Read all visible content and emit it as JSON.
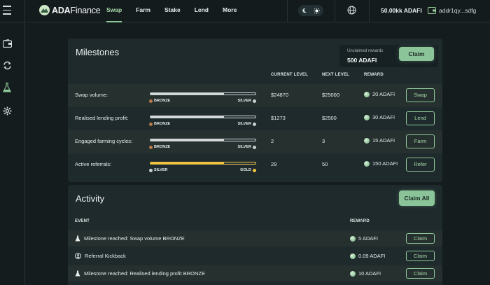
{
  "app": {
    "logo_strong": "ADA",
    "logo_light": "Finance"
  },
  "nav": {
    "items": [
      {
        "label": "Swap",
        "active": true
      },
      {
        "label": "Farm",
        "active": false
      },
      {
        "label": "Stake",
        "active": false
      },
      {
        "label": "Lend",
        "active": false
      },
      {
        "label": "More",
        "active": false
      }
    ]
  },
  "header": {
    "balance": "50.00kk ADAFI",
    "address": "addr1qy...sdfg",
    "icons": [
      "moon-icon",
      "sun-icon",
      "globe-icon",
      "wallet-icon"
    ]
  },
  "sidebar": {
    "icons": [
      "wallet-icon",
      "swap-icon",
      "flask-icon",
      "gear-icon"
    ]
  },
  "milestones": {
    "title": "Milestones",
    "unclaimed_label": "Unclaimed rewards",
    "unclaimed_value": "500 ADAFI",
    "claim_label": "Claim",
    "columns": {
      "current": "CURRENT LEVEL",
      "next": "NEXT LEVEL",
      "reward": "REWARD"
    },
    "rows": [
      {
        "label": "Swap volume:",
        "from": "BRONZE",
        "to": "SILVER",
        "progress": 0.7,
        "bar": "silver",
        "current": "$24870",
        "next": "$25000",
        "reward": "20 ADAFI",
        "action": "Swap"
      },
      {
        "label": "Realised lending profit:",
        "from": "BRONZE",
        "to": "SILVER",
        "progress": 0.7,
        "bar": "silver",
        "current": "$1273",
        "next": "$2500",
        "reward": "30 ADAFI",
        "action": "Lend"
      },
      {
        "label": "Engaged farming cycles:",
        "from": "BRONZE",
        "to": "SILVER",
        "progress": 0.7,
        "bar": "silver",
        "current": "2",
        "next": "3",
        "reward": "15 ADAFI",
        "action": "Farm"
      },
      {
        "label": "Active referrals:",
        "from": "SILVER",
        "to": "GOLD",
        "progress": 0.7,
        "bar": "gold",
        "current": "29",
        "next": "50",
        "reward": "150 ADAFI",
        "action": "Refer"
      }
    ]
  },
  "activity": {
    "title": "Activity",
    "claim_all_label": "Claim All",
    "columns": {
      "event": "EVENT",
      "reward": "REWARD"
    },
    "rows": [
      {
        "event": "Milestone reached: Swap volume BRONZE",
        "icon": "flask-icon",
        "reward": "5 ADAFI",
        "action": "Claim"
      },
      {
        "event": "Referral Kickback",
        "icon": "referral-icon",
        "reward": "0.09 ADAFI",
        "action": "Claim"
      },
      {
        "event": "Milestone reached: Realised lending profit BRONZE",
        "icon": "flask-icon",
        "reward": "10 ADAFI",
        "action": "Claim"
      }
    ]
  },
  "colors": {
    "accent": "#8cc49a",
    "bronze": "#b87a4b",
    "silver": "#c9ced0",
    "gold": "#f2c33c"
  }
}
